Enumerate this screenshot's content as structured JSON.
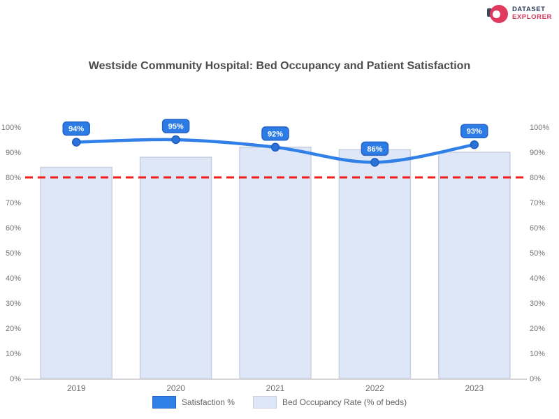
{
  "brand": {
    "name_line1": "DATASET",
    "name_line2": "EXPLORER",
    "icon": "red-circle-logo",
    "colors": {
      "circle": "#e13a5e",
      "line1": "#2e3a59",
      "line2": "#d93a5e"
    }
  },
  "chart_data": {
    "type": "bar",
    "title": "Westside Community Hospital: Bed Occupancy and Patient Satisfaction",
    "categories": [
      "2019",
      "2020",
      "2021",
      "2022",
      "2023"
    ],
    "series": [
      {
        "name": "Satisfaction %",
        "type": "line",
        "values": [
          94,
          95,
          92,
          86,
          93
        ],
        "data_labels": [
          "94%",
          "95%",
          "92%",
          "86%",
          "93%"
        ],
        "color": "#3180e8",
        "point_color": "#2a72d8",
        "point_border": "#1f5cc0",
        "badge_bg": "#2d7ce5",
        "badge_border": "#2363c6",
        "badge_text_color": "#ffffff"
      },
      {
        "name": "Bed Occupancy Rate (% of beds)",
        "type": "bar",
        "values": [
          84,
          88,
          92,
          91,
          90
        ],
        "color": "#dee7f8",
        "border_color": "#c8cfdf"
      }
    ],
    "target_line": {
      "value": 80,
      "color": "#f51b1b",
      "style": "dashed"
    },
    "y_axis_left": {
      "min": 0,
      "max": 100,
      "tick_labels": [
        "100%",
        "90%",
        "80%",
        "70%",
        "60%",
        "50%",
        "40%",
        "30%",
        "20%",
        "10%",
        "0%"
      ]
    },
    "y_axis_right": {
      "min": 0,
      "max": 100,
      "tick_labels": [
        "100%",
        "90%",
        "80%",
        "70%",
        "60%",
        "50%",
        "40%",
        "30%",
        "20%",
        "10%",
        "0%"
      ]
    },
    "grid": false,
    "legend": {
      "position": "bottom"
    },
    "axis_text_color": "#757575",
    "baseline_color": "#d6d6da"
  }
}
